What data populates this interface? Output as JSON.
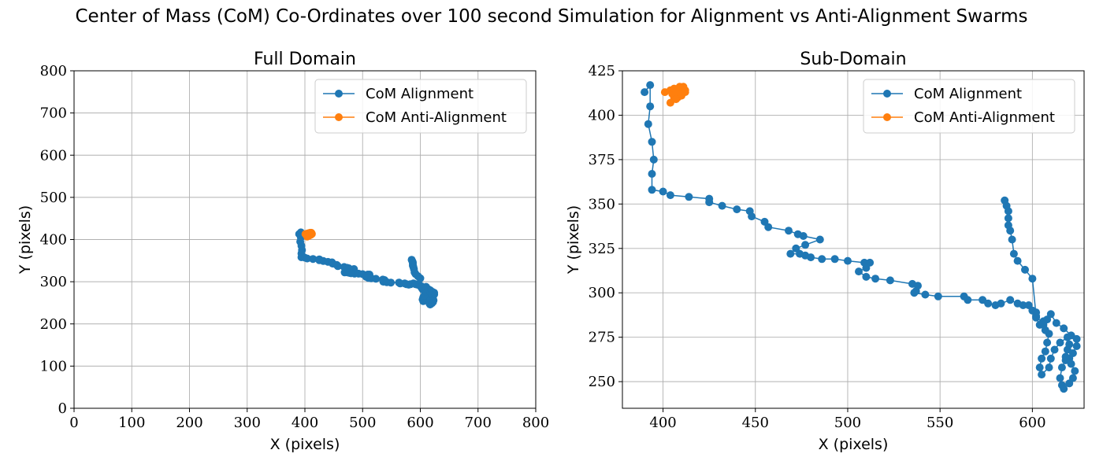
{
  "figure": {
    "suptitle": "Center of Mass (CoM) Co-Ordinates over 100 second Simulation for Alignment vs Anti-Alignment Swarms"
  },
  "colors": {
    "alignment": "#1f77b4",
    "anti_alignment": "#ff7f0e",
    "grid": "#b0b0b0"
  },
  "chart_data": [
    {
      "type": "line",
      "title": "Full Domain",
      "xlabel": "X (pixels)",
      "ylabel": "Y (pixels)",
      "xlim": [
        0,
        800
      ],
      "ylim": [
        0,
        800
      ],
      "xticks": [
        0,
        100,
        200,
        300,
        400,
        500,
        600,
        700,
        800
      ],
      "yticks": [
        0,
        100,
        200,
        300,
        400,
        500,
        600,
        700,
        800
      ],
      "grid": true,
      "legend_position": "upper right",
      "series": [
        {
          "name": "CoM Alignment",
          "color": "#1f77b4",
          "marker": "circle",
          "points": [
            [
              390,
              413
            ],
            [
              393,
              417
            ],
            [
              393,
              405
            ],
            [
              392,
              395
            ],
            [
              394,
              385
            ],
            [
              395,
              375
            ],
            [
              394,
              367
            ],
            [
              394,
              358
            ],
            [
              400,
              357
            ],
            [
              404,
              355
            ],
            [
              414,
              354
            ],
            [
              425,
              353
            ],
            [
              425,
              351
            ],
            [
              432,
              349
            ],
            [
              440,
              347
            ],
            [
              447,
              346
            ],
            [
              448,
              343
            ],
            [
              455,
              340
            ],
            [
              457,
              337
            ],
            [
              468,
              335
            ],
            [
              473,
              333
            ],
            [
              476,
              332
            ],
            [
              485,
              330
            ],
            [
              477,
              327
            ],
            [
              472,
              325
            ],
            [
              469,
              322
            ],
            [
              474,
              322
            ],
            [
              477,
              321
            ],
            [
              480,
              320
            ],
            [
              486,
              319
            ],
            [
              493,
              319
            ],
            [
              500,
              318
            ],
            [
              509,
              317
            ],
            [
              512,
              317
            ],
            [
              510,
              314
            ],
            [
              506,
              312
            ],
            [
              510,
              309
            ],
            [
              515,
              308
            ],
            [
              523,
              307
            ],
            [
              535,
              305
            ],
            [
              538,
              304
            ],
            [
              537,
              301
            ],
            [
              536,
              300
            ],
            [
              542,
              299
            ],
            [
              549,
              298
            ],
            [
              563,
              298
            ],
            [
              565,
              296
            ],
            [
              573,
              296
            ],
            [
              576,
              294
            ],
            [
              580,
              293
            ],
            [
              583,
              294
            ],
            [
              588,
              296
            ],
            [
              592,
              294
            ],
            [
              595,
              293
            ],
            [
              598,
              293
            ],
            [
              600,
              290
            ],
            [
              602,
              289
            ],
            [
              602,
              286
            ],
            [
              604,
              282
            ],
            [
              606,
              284
            ],
            [
              608,
              285
            ],
            [
              610,
              288
            ],
            [
              613,
              283
            ],
            [
              617,
              280
            ],
            [
              621,
              276
            ],
            [
              624,
              274
            ],
            [
              624,
              270
            ],
            [
              622,
              266
            ],
            [
              620,
              263
            ],
            [
              618,
              262
            ],
            [
              616,
              258
            ],
            [
              615,
              252
            ],
            [
              616,
              248
            ],
            [
              617,
              246
            ],
            [
              620,
              249
            ],
            [
              622,
              252
            ],
            [
              623,
              256
            ],
            [
              621,
              260
            ],
            [
              618,
              264
            ],
            [
              619,
              268
            ],
            [
              620,
              271
            ],
            [
              619,
              275
            ],
            [
              615,
              272
            ],
            [
              612,
              268
            ],
            [
              610,
              263
            ],
            [
              609,
              258
            ],
            [
              605,
              254
            ],
            [
              604,
              258
            ],
            [
              605,
              263
            ],
            [
              607,
              267
            ],
            [
              608,
              272
            ],
            [
              609,
              277
            ],
            [
              607,
              279
            ],
            [
              606,
              282
            ],
            [
              602,
              287
            ],
            [
              600,
              308
            ],
            [
              596,
              313
            ],
            [
              592,
              318
            ],
            [
              590,
              322
            ],
            [
              589,
              330
            ],
            [
              588,
              335
            ],
            [
              587,
              338
            ],
            [
              587,
              342
            ],
            [
              587,
              346
            ],
            [
              586,
              349
            ],
            [
              585,
              352
            ]
          ]
        },
        {
          "name": "CoM Anti-Alignment",
          "color": "#ff7f0e",
          "marker": "circle",
          "points": [
            [
              401,
              413
            ],
            [
              404,
              414
            ],
            [
              405,
              412
            ],
            [
              406,
              415
            ],
            [
              407,
              413
            ],
            [
              408,
              410
            ],
            [
              409,
              414
            ],
            [
              410,
              411
            ],
            [
              411,
              415
            ],
            [
              412,
              413
            ],
            [
              411,
              416
            ],
            [
              409,
              416
            ],
            [
              406,
              410
            ],
            [
              404,
              407
            ],
            [
              407,
              409
            ],
            [
              410,
              412
            ],
            [
              412,
              414
            ]
          ]
        }
      ]
    },
    {
      "type": "line",
      "title": "Sub-Domain",
      "xlabel": "X (pixels)",
      "ylabel": "Y (pixels)",
      "xlim": [
        378,
        628
      ],
      "ylim": [
        235,
        425
      ],
      "xticks": [
        400,
        450,
        500,
        550,
        600
      ],
      "yticks": [
        250,
        275,
        300,
        325,
        350,
        375,
        400,
        425
      ],
      "grid": true,
      "legend_position": "upper right",
      "series": [
        {
          "name": "CoM Alignment",
          "color": "#1f77b4",
          "marker": "circle",
          "points": [
            [
              390,
              413
            ],
            [
              393,
              417
            ],
            [
              393,
              405
            ],
            [
              392,
              395
            ],
            [
              394,
              385
            ],
            [
              395,
              375
            ],
            [
              394,
              367
            ],
            [
              394,
              358
            ],
            [
              400,
              357
            ],
            [
              404,
              355
            ],
            [
              414,
              354
            ],
            [
              425,
              353
            ],
            [
              425,
              351
            ],
            [
              432,
              349
            ],
            [
              440,
              347
            ],
            [
              447,
              346
            ],
            [
              448,
              343
            ],
            [
              455,
              340
            ],
            [
              457,
              337
            ],
            [
              468,
              335
            ],
            [
              473,
              333
            ],
            [
              476,
              332
            ],
            [
              485,
              330
            ],
            [
              477,
              327
            ],
            [
              472,
              325
            ],
            [
              469,
              322
            ],
            [
              474,
              322
            ],
            [
              477,
              321
            ],
            [
              480,
              320
            ],
            [
              486,
              319
            ],
            [
              493,
              319
            ],
            [
              500,
              318
            ],
            [
              509,
              317
            ],
            [
              512,
              317
            ],
            [
              510,
              314
            ],
            [
              506,
              312
            ],
            [
              510,
              309
            ],
            [
              515,
              308
            ],
            [
              523,
              307
            ],
            [
              535,
              305
            ],
            [
              538,
              304
            ],
            [
              537,
              301
            ],
            [
              536,
              300
            ],
            [
              542,
              299
            ],
            [
              549,
              298
            ],
            [
              563,
              298
            ],
            [
              565,
              296
            ],
            [
              573,
              296
            ],
            [
              576,
              294
            ],
            [
              580,
              293
            ],
            [
              583,
              294
            ],
            [
              588,
              296
            ],
            [
              592,
              294
            ],
            [
              595,
              293
            ],
            [
              598,
              293
            ],
            [
              600,
              290
            ],
            [
              602,
              289
            ],
            [
              602,
              286
            ],
            [
              604,
              282
            ],
            [
              606,
              284
            ],
            [
              608,
              285
            ],
            [
              610,
              288
            ],
            [
              613,
              283
            ],
            [
              617,
              280
            ],
            [
              621,
              276
            ],
            [
              624,
              274
            ],
            [
              624,
              270
            ],
            [
              622,
              266
            ],
            [
              620,
              263
            ],
            [
              618,
              262
            ],
            [
              616,
              258
            ],
            [
              615,
              252
            ],
            [
              616,
              248
            ],
            [
              617,
              246
            ],
            [
              620,
              249
            ],
            [
              622,
              252
            ],
            [
              623,
              256
            ],
            [
              621,
              260
            ],
            [
              618,
              264
            ],
            [
              619,
              268
            ],
            [
              620,
              271
            ],
            [
              619,
              275
            ],
            [
              615,
              272
            ],
            [
              612,
              268
            ],
            [
              610,
              263
            ],
            [
              609,
              258
            ],
            [
              605,
              254
            ],
            [
              604,
              258
            ],
            [
              605,
              263
            ],
            [
              607,
              267
            ],
            [
              608,
              272
            ],
            [
              609,
              277
            ],
            [
              607,
              279
            ],
            [
              606,
              282
            ],
            [
              602,
              287
            ],
            [
              600,
              308
            ],
            [
              596,
              313
            ],
            [
              592,
              318
            ],
            [
              590,
              322
            ],
            [
              589,
              330
            ],
            [
              588,
              335
            ],
            [
              587,
              338
            ],
            [
              587,
              342
            ],
            [
              587,
              346
            ],
            [
              586,
              349
            ],
            [
              585,
              352
            ]
          ]
        },
        {
          "name": "CoM Anti-Alignment",
          "color": "#ff7f0e",
          "marker": "circle",
          "points": [
            [
              401,
              413
            ],
            [
              404,
              414
            ],
            [
              405,
              412
            ],
            [
              406,
              415
            ],
            [
              407,
              413
            ],
            [
              408,
              410
            ],
            [
              409,
              414
            ],
            [
              410,
              411
            ],
            [
              411,
              415
            ],
            [
              412,
              413
            ],
            [
              411,
              416
            ],
            [
              409,
              416
            ],
            [
              406,
              410
            ],
            [
              404,
              407
            ],
            [
              407,
              409
            ],
            [
              410,
              412
            ],
            [
              412,
              414
            ]
          ]
        }
      ]
    }
  ]
}
